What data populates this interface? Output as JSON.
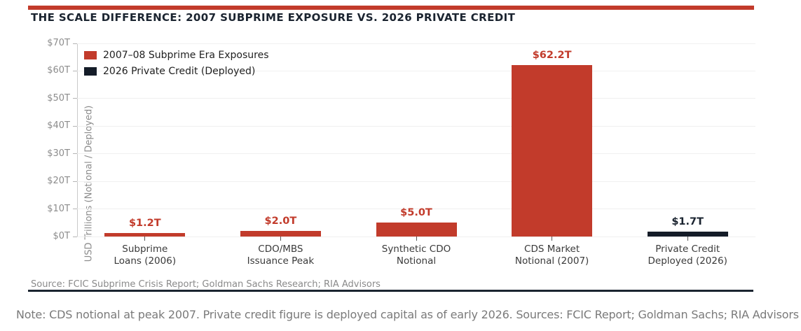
{
  "colors": {
    "accent_red": "#c23b2b",
    "dark_navy": "#1b2430",
    "bar_black": "#141c28",
    "gridline": "#f0f0f0"
  },
  "header": {
    "title": "THE SCALE DIFFERENCE: 2007 SUBPRIME EXPOSURE VS. 2026 PRIVATE CREDIT"
  },
  "chart_data": {
    "type": "bar",
    "categories": [
      "Subprime\nLoans (2006)",
      "CDO/MBS\nIssuance Peak",
      "Synthetic CDO\nNotional",
      "CDS Market\nNotional (2007)",
      "Private Credit\nDeployed (2026)"
    ],
    "values": [
      1.2,
      2.0,
      5.0,
      62.2,
      1.7
    ],
    "value_labels": [
      "$1.2T",
      "$2.0T",
      "$5.0T",
      "$62.2T",
      "$1.7T"
    ],
    "bar_colors": [
      "#c23b2b",
      "#c23b2b",
      "#c23b2b",
      "#c23b2b",
      "#141c28"
    ],
    "value_label_colors": [
      "#c23b2b",
      "#c23b2b",
      "#c23b2b",
      "#c23b2b",
      "#1b2430"
    ],
    "title": "THE SCALE DIFFERENCE: 2007 SUBPRIME EXPOSURE VS. 2026 PRIVATE CREDIT",
    "xlabel": "",
    "ylabel": "USD Trillions (Notional / Deployed)",
    "ylim": [
      0,
      70
    ],
    "yticks": [
      0,
      10,
      20,
      30,
      40,
      50,
      60,
      70
    ],
    "ytick_labels": [
      "$0T",
      "$10T",
      "$20T",
      "$30T",
      "$40T",
      "$50T",
      "$60T",
      "$70T"
    ],
    "grid": true,
    "legend_position": "upper left",
    "legend": [
      {
        "label": "2007–08 Subprime Era Exposures",
        "color": "#c23b2b"
      },
      {
        "label": "2026 Private Credit (Deployed)",
        "color": "#141c28"
      }
    ]
  },
  "source": {
    "text": "Source: FCIC Subprime Crisis Report; Goldman Sachs Research; RIA Advisors"
  },
  "note": {
    "text": "Note: CDS notional at peak 2007. Private credit figure is deployed capital as of early 2026. Sources: FCIC Report; Goldman Sachs; RIA Advisors"
  }
}
